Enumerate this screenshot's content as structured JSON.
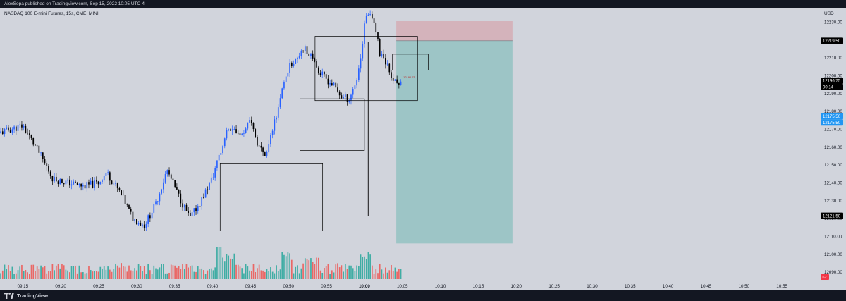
{
  "header": {
    "published_text": "AlexSopa published on TradingView.com, Sep 15, 2022 10:05 UTC-4"
  },
  "footer": {
    "brand": "TradingView"
  },
  "colors": {
    "chart_bg": "#d1d4dc",
    "frame_bg": "#131722",
    "candle_up": "#2962ff",
    "candle_down": "#000000",
    "volume_up": "#26a69a",
    "volume_down": "#ef5350",
    "stop_zone": "#d4b3bb",
    "target_zone": "#9dc5c6",
    "label_dark": "#000000",
    "label_blue": "#2196f3",
    "label_red": "#f23645"
  },
  "chart_data": {
    "type": "candlestick",
    "title": "NASDAQ 100 E-mini Futures, 15s, CME_MINI",
    "currency": "USD",
    "interval": "15s",
    "y_ticks": [
      12230.0,
      12220.0,
      12210.0,
      12200.0,
      12190.0,
      12180.0,
      12170.0,
      12160.0,
      12150.0,
      12140.0,
      12130.0,
      12120.0,
      12110.0,
      12100.0,
      12090.0
    ],
    "y_ticks_text": [
      "12230.00",
      "12220.00",
      "12210.00",
      "12200.00",
      "12190.00",
      "12180.00",
      "12170.00",
      "12160.00",
      "12150.00",
      "12140.00",
      "12130.00",
      "12120.00",
      "12110.00",
      "12100.00",
      "12090.00"
    ],
    "y_range": [
      12086.0,
      12238.0
    ],
    "x_ticks": [
      "09:15",
      "09:20",
      "09:25",
      "09:30",
      "09:35",
      "09:40",
      "09:45",
      "09:50",
      "09:55",
      "10:00",
      "10:05",
      "10:10",
      "10:15",
      "10:20",
      "10:25",
      "10:30",
      "10:35",
      "10:40",
      "10:45",
      "10:50",
      "10:55"
    ],
    "x_ticks_bold": [
      "10:00"
    ],
    "x_tick_start_minutes": 555,
    "x_tick_step_minutes": 5,
    "x_range_minutes": [
      552.0,
      660.0
    ],
    "price_anchors_time": [
      552.0,
      555.0,
      557.0,
      559.0,
      561.0,
      563.0,
      565.0,
      566.0,
      568.0,
      569.5,
      571.0,
      572.5,
      574.0,
      575.5,
      577.0,
      578.5,
      580.0,
      581.0,
      582.0,
      583.5,
      585.0,
      586.0,
      587.0,
      588.0,
      589.0,
      590.0,
      591.0,
      592.0,
      593.0,
      594.0,
      595.0,
      596.0,
      597.0,
      598.0,
      599.0,
      599.6,
      600.0,
      600.5,
      601.0,
      601.5,
      602.0,
      603.0,
      604.0,
      604.8
    ],
    "price_anchors_close": [
      12168,
      12172,
      12158,
      12142,
      12140,
      12138,
      12140,
      12146,
      12133,
      12120,
      12116,
      12128,
      12147,
      12133,
      12120,
      12130,
      12143,
      12157,
      12172,
      12166,
      12174,
      12160,
      12154,
      12172,
      12188,
      12205,
      12210,
      12216,
      12210,
      12202,
      12198,
      12194,
      12188,
      12187,
      12198,
      12213,
      12228,
      12236,
      12234,
      12226,
      12212,
      12206,
      12196,
      12196
    ],
    "candle_count": 210,
    "candle_seed": 11,
    "volume_max": 100,
    "current_price": 12196.75,
    "current_price_text": "12196.75",
    "countdown_text": "00:14",
    "stop_price": 12230.5,
    "entry_price": 12219.5,
    "entry_price_text": "12219.50",
    "target_price": 12106.0,
    "blue_label_texts": [
      "12175.50",
      "12175.50"
    ],
    "lower_label_text": "12121.50",
    "volume_label_text": "62",
    "position_start_minutes": 604.2,
    "position_end_minutes": 619.5,
    "position_label_text": "12196.75",
    "vertical_line": {
      "minutes": 600.5,
      "top_price": 12219.0,
      "bottom_price": 12121.5
    },
    "rectangles": [
      {
        "from": 581.0,
        "to": 594.5,
        "top": 12151,
        "bottom": 12113
      },
      {
        "from": 591.5,
        "to": 600.0,
        "top": 12187,
        "bottom": 12158
      },
      {
        "from": 593.5,
        "to": 607.0,
        "top": 12222,
        "bottom": 12186
      },
      {
        "from": 603.7,
        "to": 608.4,
        "top": 12212,
        "bottom": 12203
      }
    ]
  }
}
